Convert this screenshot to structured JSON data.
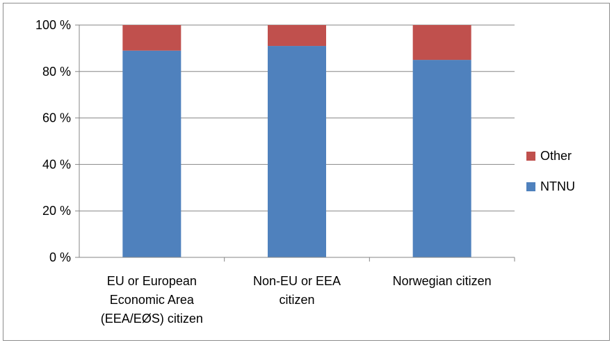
{
  "chart_data": {
    "type": "bar",
    "stacked": true,
    "percent_stacked": true,
    "categories": [
      [
        "EU or European",
        "Economic Area",
        "(EEA/EØS) citizen"
      ],
      [
        "Non-EU or EEA",
        "citizen"
      ],
      [
        "Norwegian citizen"
      ]
    ],
    "series": [
      {
        "name": "NTNU",
        "color": "#4F81BD",
        "values": [
          89,
          91,
          85
        ]
      },
      {
        "name": "Other",
        "color": "#C0504D",
        "values": [
          11,
          9,
          15
        ]
      }
    ],
    "ylim": [
      0,
      100
    ],
    "yticks": [
      "0 %",
      "20 %",
      "40 %",
      "60 %",
      "80 %",
      "100 %"
    ],
    "grid": true,
    "legend_position": "right"
  }
}
